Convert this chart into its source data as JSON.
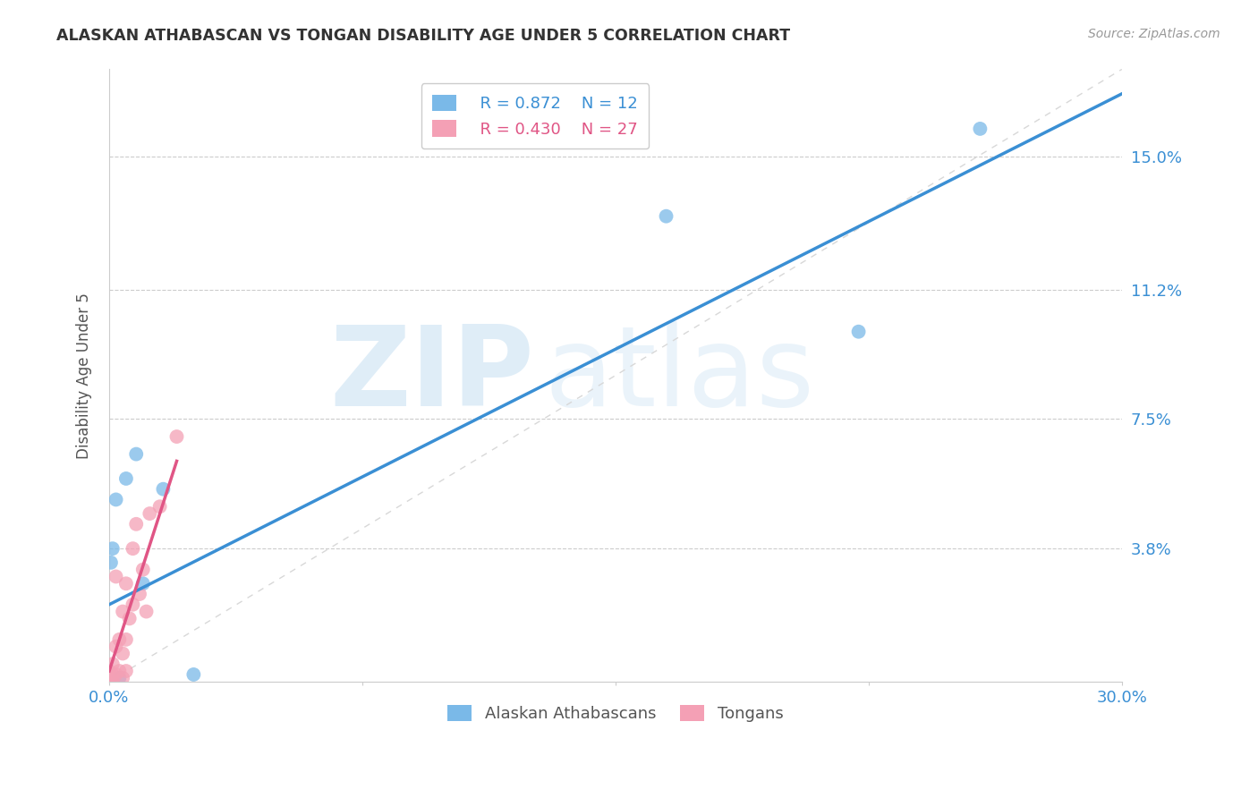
{
  "title": "ALASKAN ATHABASCAN VS TONGAN DISABILITY AGE UNDER 5 CORRELATION CHART",
  "source": "Source: ZipAtlas.com",
  "ylabel": "Disability Age Under 5",
  "xlim": [
    0.0,
    0.3
  ],
  "ylim": [
    0.0,
    0.175
  ],
  "ytick_vals": [
    0.038,
    0.075,
    0.112,
    0.15
  ],
  "ytick_labels": [
    "3.8%",
    "7.5%",
    "11.2%",
    "15.0%"
  ],
  "xtick_vals": [
    0.0,
    0.075,
    0.15,
    0.225,
    0.3
  ],
  "xtick_labels": [
    "0.0%",
    "",
    "",
    "",
    "30.0%"
  ],
  "grid_color": "#cccccc",
  "background": "#ffffff",
  "blue_color": "#7ab9e8",
  "pink_color": "#f4a0b5",
  "blue_line_color": "#3a8fd4",
  "pink_line_color": "#e05585",
  "diagonal_color": "#d8d8d8",
  "watermark_zip": "ZIP",
  "watermark_atlas": "atlas",
  "legend_r_blue": "R = 0.872",
  "legend_n_blue": "N = 12",
  "legend_r_pink": "R = 0.430",
  "legend_n_pink": "N = 27",
  "blue_points_x": [
    0.0005,
    0.001,
    0.002,
    0.003,
    0.005,
    0.008,
    0.01,
    0.016,
    0.025,
    0.165,
    0.222,
    0.258
  ],
  "blue_points_y": [
    0.034,
    0.038,
    0.052,
    0.001,
    0.058,
    0.065,
    0.028,
    0.055,
    0.002,
    0.133,
    0.1,
    0.158
  ],
  "pink_points_x": [
    0.0,
    0.0,
    0.0,
    0.001,
    0.001,
    0.001,
    0.002,
    0.002,
    0.002,
    0.003,
    0.003,
    0.004,
    0.004,
    0.004,
    0.005,
    0.005,
    0.005,
    0.006,
    0.007,
    0.007,
    0.008,
    0.009,
    0.01,
    0.011,
    0.012,
    0.015,
    0.02
  ],
  "pink_points_y": [
    0.0,
    0.001,
    0.003,
    0.0,
    0.002,
    0.005,
    0.002,
    0.01,
    0.03,
    0.003,
    0.012,
    0.001,
    0.008,
    0.02,
    0.003,
    0.012,
    0.028,
    0.018,
    0.022,
    0.038,
    0.045,
    0.025,
    0.032,
    0.02,
    0.048,
    0.05,
    0.07
  ],
  "blue_line_x": [
    0.0,
    0.3
  ],
  "blue_line_y": [
    0.022,
    0.168
  ],
  "pink_line_x": [
    0.0,
    0.02
  ],
  "pink_line_y": [
    0.003,
    0.063
  ]
}
